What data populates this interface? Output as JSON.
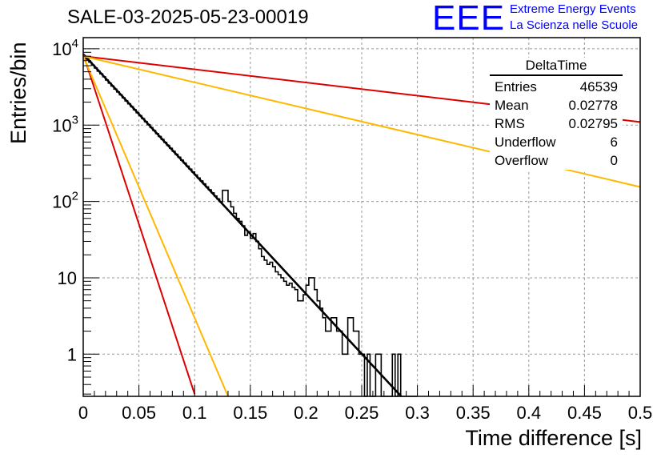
{
  "header": {
    "title": "SALE-03-2025-05-23-00019",
    "logo": "EEE",
    "logo_line1": "Extreme Energy Events",
    "logo_line2": "La Scienza nelle Scuole"
  },
  "stats": {
    "title": "DeltaTime",
    "rows": [
      {
        "label": "Entries",
        "value": "46539"
      },
      {
        "label": "Mean",
        "value": "0.02778"
      },
      {
        "label": "RMS",
        "value": "0.02795"
      },
      {
        "label": "Underflow",
        "value": "6"
      },
      {
        "label": "Overflow",
        "value": "0"
      }
    ]
  },
  "chart_data": {
    "type": "line",
    "xlabel": "Time difference [s]",
    "ylabel": "Entries/bin",
    "xlim": [
      0,
      0.5
    ],
    "ylim": [
      0.28,
      14000
    ],
    "yscale": "log",
    "grid": true,
    "x_ticks": [
      "0",
      "0.05",
      "0.1",
      "0.15",
      "0.2",
      "0.25",
      "0.3",
      "0.35",
      "0.4",
      "0.45",
      "0.5"
    ],
    "y_ticks": [
      {
        "value": 1,
        "label": "1"
      },
      {
        "value": 10,
        "label": "10"
      },
      {
        "value": 100,
        "label": "10",
        "sup": "2"
      },
      {
        "value": 1000,
        "label": "10",
        "sup": "3"
      },
      {
        "value": 10000,
        "label": "10",
        "sup": "4"
      }
    ],
    "histogram": {
      "bin_width": 0.0025,
      "color": "#000000",
      "values": [
        8000,
        7300,
        6700,
        6100,
        5600,
        5100,
        4700,
        4300,
        3900,
        3550,
        3250,
        2970,
        2720,
        2490,
        2280,
        2080,
        1900,
        1740,
        1590,
        1450,
        1330,
        1215,
        1110,
        1015,
        930,
        850,
        776,
        710,
        650,
        594,
        543,
        497,
        454,
        415,
        380,
        347,
        318,
        290,
        265,
        243,
        222,
        203,
        186,
        170,
        155,
        142,
        130,
        118,
        108,
        99,
        140,
        140,
        100,
        85,
        70,
        60,
        55,
        48,
        36,
        40,
        33,
        38,
        30,
        24,
        19,
        17,
        15,
        16,
        14,
        12,
        11,
        10,
        9,
        8,
        8.5,
        7.5,
        7,
        5,
        5,
        6,
        8,
        10,
        10,
        7,
        5,
        4,
        3,
        2,
        2,
        3,
        3,
        2,
        2,
        1,
        1,
        3,
        3,
        2,
        2,
        1,
        1,
        0,
        1,
        0,
        0,
        1,
        1,
        0,
        0,
        0,
        0,
        1,
        0,
        1,
        0,
        0,
        0,
        0,
        0,
        0
      ]
    },
    "series": [
      {
        "color": "#000000",
        "x": [
          0,
          0.2855
        ],
        "y": [
          8500,
          0.28
        ]
      },
      {
        "color": "#dd0000",
        "x": [
          0,
          0.1
        ],
        "y": [
          8500,
          0.3
        ]
      },
      {
        "color": "#dd0000",
        "x": [
          0,
          0.5
        ],
        "y": [
          8000,
          1100
        ]
      },
      {
        "color": "#ffb800",
        "x": [
          0,
          0.13
        ],
        "y": [
          8000,
          0.28
        ]
      },
      {
        "color": "#ffb800",
        "x": [
          0,
          0.5
        ],
        "y": [
          8000,
          155
        ]
      }
    ]
  }
}
